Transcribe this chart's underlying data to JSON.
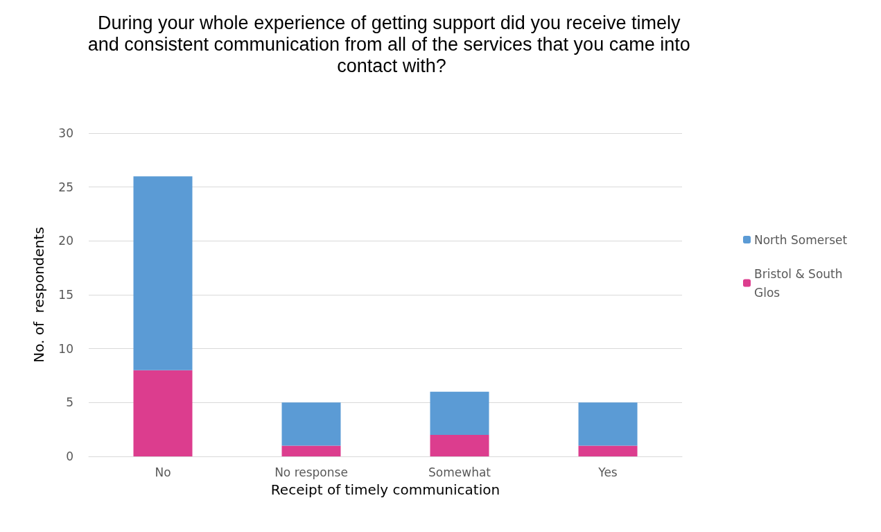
{
  "chart_data": {
    "type": "bar",
    "title": "During your whole experience of getting support did you receive timely and consistent communication from all of the services that you came into contact with?",
    "xlabel": "Receipt of timely communication",
    "ylabel": "No. of  respondents",
    "categories": [
      "No",
      "No response",
      "Somewhat",
      "Yes"
    ],
    "stacked": true,
    "series": [
      {
        "name": "Bristol & South Glos",
        "color": "#dc3d8e",
        "values": [
          8,
          1,
          2,
          1
        ]
      },
      {
        "name": "North Somerset",
        "color": "#5b9bd5",
        "values": [
          18,
          4,
          4,
          4
        ]
      }
    ],
    "ylim": [
      0,
      30
    ],
    "yticks": [
      0,
      5,
      10,
      15,
      20,
      25,
      30
    ],
    "grid": "y",
    "legend": "right"
  }
}
